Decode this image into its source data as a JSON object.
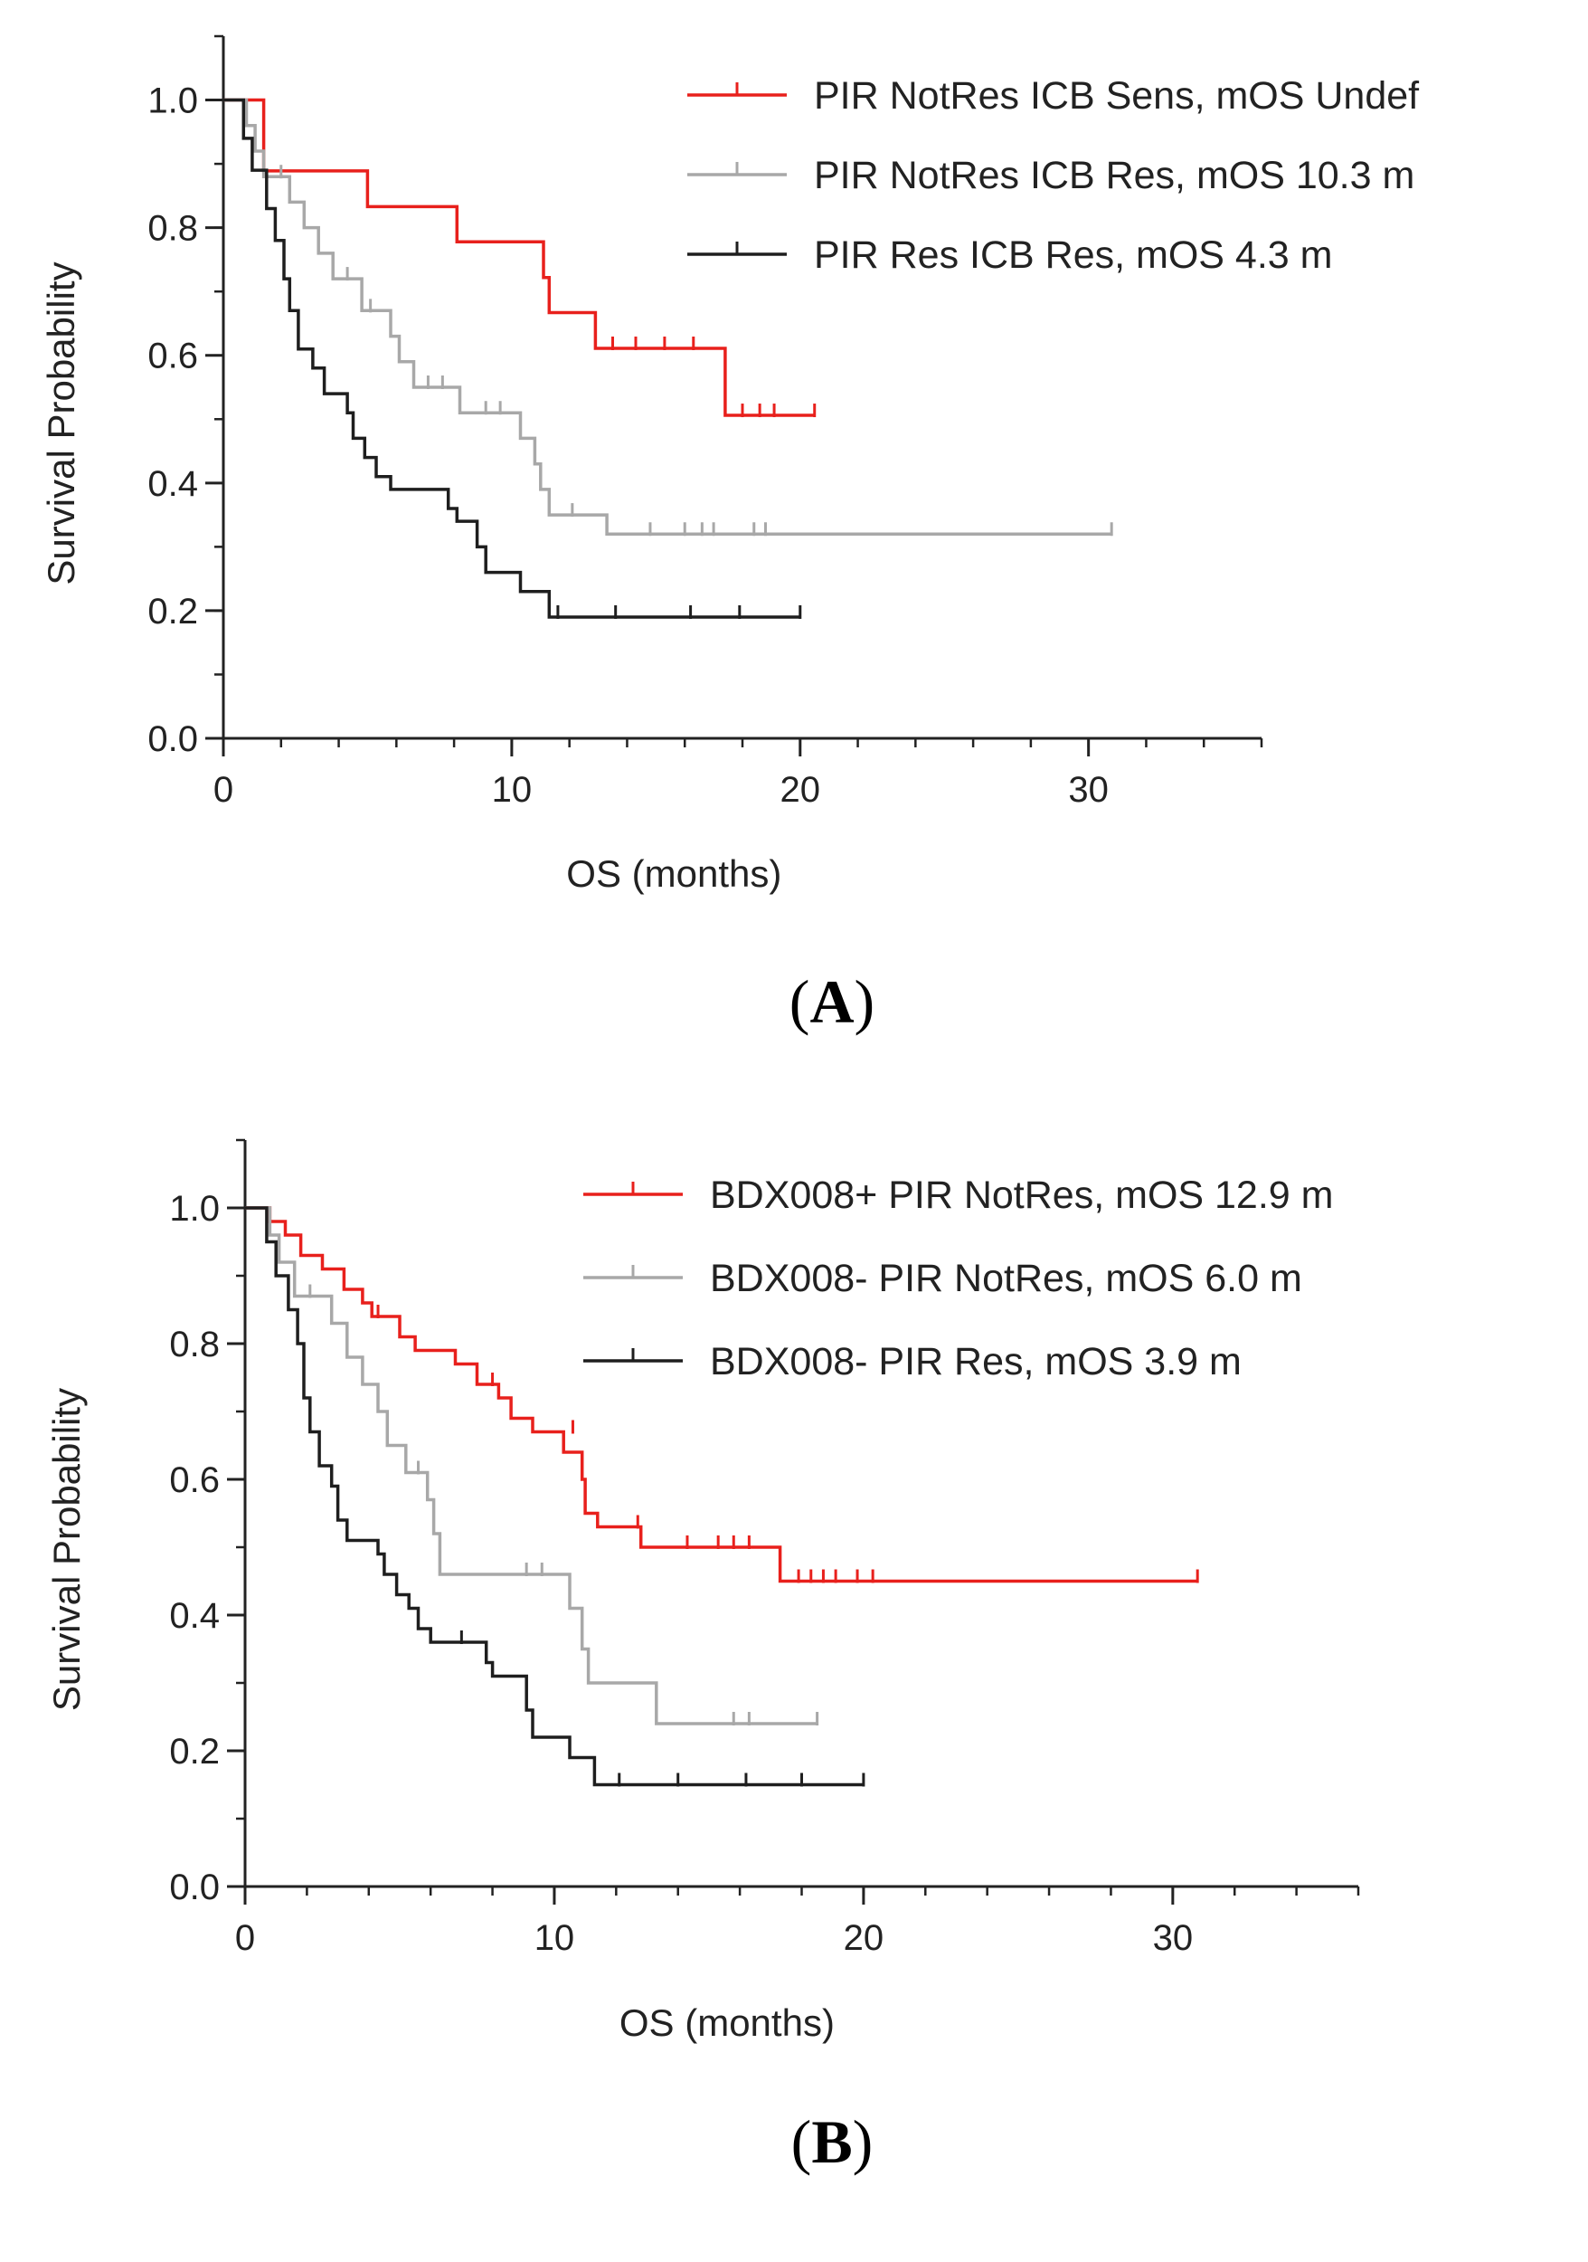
{
  "figure": {
    "label_a": "A",
    "label_b": "B"
  },
  "chart_data": [
    {
      "type": "line",
      "panel": "A",
      "title": "",
      "xlabel": "OS (months)",
      "ylabel": "Survival Probability",
      "xlim": [
        0,
        36
      ],
      "ylim": [
        0,
        1.1
      ],
      "xticks": [
        0,
        10,
        20,
        30
      ],
      "xtick_labels": [
        "0",
        "10",
        "20",
        "30"
      ],
      "yticks": [
        0.0,
        0.2,
        0.4,
        0.6,
        0.8,
        1.0
      ],
      "ytick_labels": [
        "0.0",
        "0.2",
        "0.4",
        "0.6",
        "0.8",
        "1.0"
      ],
      "legend_position": "top-right",
      "series": [
        {
          "name": "PIR NotRes ICB Sens, mOS Undef",
          "color": "#e8201c",
          "steps": [
            [
              0,
              1.0
            ],
            [
              1.4,
              0.889
            ],
            [
              5.0,
              0.833
            ],
            [
              8.1,
              0.778
            ],
            [
              11.1,
              0.722
            ],
            [
              11.3,
              0.667
            ],
            [
              12.9,
              0.611
            ],
            [
              17.4,
              0.506
            ],
            [
              20.5,
              0.506
            ]
          ],
          "censored": [
            [
              13.5,
              0.611
            ],
            [
              14.3,
              0.611
            ],
            [
              15.3,
              0.611
            ],
            [
              16.3,
              0.611
            ],
            [
              18.0,
              0.506
            ],
            [
              18.6,
              0.506
            ],
            [
              19.1,
              0.506
            ],
            [
              20.5,
              0.506
            ]
          ]
        },
        {
          "name": "PIR NotRes ICB Res, mOS 10.3 m",
          "color": "#a8a8a8",
          "steps": [
            [
              0,
              1.0
            ],
            [
              0.8,
              0.96
            ],
            [
              1.1,
              0.92
            ],
            [
              1.4,
              0.88
            ],
            [
              2.3,
              0.84
            ],
            [
              2.8,
              0.8
            ],
            [
              3.3,
              0.76
            ],
            [
              3.8,
              0.72
            ],
            [
              4.8,
              0.67
            ],
            [
              5.8,
              0.63
            ],
            [
              6.1,
              0.59
            ],
            [
              6.6,
              0.55
            ],
            [
              8.2,
              0.51
            ],
            [
              10.3,
              0.47
            ],
            [
              10.8,
              0.43
            ],
            [
              11.0,
              0.39
            ],
            [
              11.3,
              0.35
            ],
            [
              13.3,
              0.32
            ],
            [
              30.8,
              0.32
            ]
          ],
          "censored": [
            [
              2.0,
              0.88
            ],
            [
              4.3,
              0.72
            ],
            [
              5.1,
              0.67
            ],
            [
              7.1,
              0.55
            ],
            [
              7.6,
              0.55
            ],
            [
              9.1,
              0.51
            ],
            [
              9.6,
              0.51
            ],
            [
              12.1,
              0.35
            ],
            [
              14.8,
              0.32
            ],
            [
              16.0,
              0.32
            ],
            [
              16.6,
              0.32
            ],
            [
              17.0,
              0.32
            ],
            [
              18.4,
              0.32
            ],
            [
              18.8,
              0.32
            ],
            [
              30.8,
              0.32
            ]
          ]
        },
        {
          "name": "PIR Res ICB Res, mOS 4.3 m",
          "color": "#1e1e1e",
          "steps": [
            [
              0,
              1.0
            ],
            [
              0.7,
              0.94
            ],
            [
              1.0,
              0.89
            ],
            [
              1.5,
              0.83
            ],
            [
              1.8,
              0.78
            ],
            [
              2.1,
              0.72
            ],
            [
              2.3,
              0.67
            ],
            [
              2.6,
              0.61
            ],
            [
              3.1,
              0.58
            ],
            [
              3.5,
              0.54
            ],
            [
              4.3,
              0.51
            ],
            [
              4.5,
              0.47
            ],
            [
              4.9,
              0.44
            ],
            [
              5.3,
              0.41
            ],
            [
              5.8,
              0.39
            ],
            [
              7.8,
              0.36
            ],
            [
              8.1,
              0.34
            ],
            [
              8.8,
              0.3
            ],
            [
              9.1,
              0.26
            ],
            [
              10.3,
              0.23
            ],
            [
              11.3,
              0.19
            ],
            [
              20.0,
              0.19
            ]
          ],
          "censored": [
            [
              11.6,
              0.19
            ],
            [
              13.6,
              0.19
            ],
            [
              16.2,
              0.19
            ],
            [
              17.9,
              0.19
            ],
            [
              20.0,
              0.19
            ]
          ]
        }
      ]
    },
    {
      "type": "line",
      "panel": "B",
      "title": "",
      "xlabel": "OS (months)",
      "ylabel": "Survival Probability",
      "xlim": [
        0,
        36
      ],
      "ylim": [
        0,
        1.1
      ],
      "xticks": [
        0,
        10,
        20,
        30
      ],
      "xtick_labels": [
        "0",
        "10",
        "20",
        "30"
      ],
      "yticks": [
        0.0,
        0.2,
        0.4,
        0.6,
        0.8,
        1.0
      ],
      "ytick_labels": [
        "0.0",
        "0.2",
        "0.4",
        "0.6",
        "0.8",
        "1.0"
      ],
      "legend_position": "top-right",
      "series": [
        {
          "name": "BDX008+ PIR NotRes, mOS 12.9 m",
          "color": "#e8201c",
          "steps": [
            [
              0,
              1.0
            ],
            [
              0.8,
              0.98
            ],
            [
              1.3,
              0.96
            ],
            [
              1.8,
              0.93
            ],
            [
              2.5,
              0.91
            ],
            [
              3.2,
              0.88
            ],
            [
              3.8,
              0.86
            ],
            [
              4.1,
              0.84
            ],
            [
              5.0,
              0.81
            ],
            [
              5.5,
              0.79
            ],
            [
              6.8,
              0.77
            ],
            [
              7.5,
              0.74
            ],
            [
              8.2,
              0.72
            ],
            [
              8.6,
              0.69
            ],
            [
              9.3,
              0.67
            ],
            [
              10.3,
              0.64
            ],
            [
              10.9,
              0.6
            ],
            [
              11.0,
              0.55
            ],
            [
              11.4,
              0.53
            ],
            [
              12.8,
              0.5
            ],
            [
              17.3,
              0.45
            ],
            [
              30.8,
              0.45
            ]
          ],
          "censored": [
            [
              4.3,
              0.84
            ],
            [
              8.0,
              0.74
            ],
            [
              10.6,
              0.67
            ],
            [
              12.7,
              0.53
            ],
            [
              14.3,
              0.5
            ],
            [
              15.3,
              0.5
            ],
            [
              15.8,
              0.5
            ],
            [
              16.3,
              0.5
            ],
            [
              17.9,
              0.45
            ],
            [
              18.3,
              0.45
            ],
            [
              18.7,
              0.45
            ],
            [
              19.1,
              0.45
            ],
            [
              19.8,
              0.45
            ],
            [
              20.3,
              0.45
            ],
            [
              30.8,
              0.45
            ]
          ]
        },
        {
          "name": "BDX008- PIR NotRes, mOS 6.0 m",
          "color": "#a8a8a8",
          "steps": [
            [
              0,
              1.0
            ],
            [
              0.8,
              0.96
            ],
            [
              1.1,
              0.92
            ],
            [
              1.6,
              0.87
            ],
            [
              2.8,
              0.83
            ],
            [
              3.3,
              0.78
            ],
            [
              3.8,
              0.74
            ],
            [
              4.3,
              0.7
            ],
            [
              4.6,
              0.65
            ],
            [
              5.2,
              0.61
            ],
            [
              5.9,
              0.57
            ],
            [
              6.1,
              0.52
            ],
            [
              6.3,
              0.46
            ],
            [
              10.5,
              0.41
            ],
            [
              10.9,
              0.35
            ],
            [
              11.1,
              0.3
            ],
            [
              13.3,
              0.24
            ],
            [
              18.5,
              0.24
            ]
          ],
          "censored": [
            [
              2.1,
              0.87
            ],
            [
              5.6,
              0.61
            ],
            [
              9.1,
              0.46
            ],
            [
              9.6,
              0.46
            ],
            [
              15.8,
              0.24
            ],
            [
              16.3,
              0.24
            ],
            [
              18.5,
              0.24
            ]
          ]
        },
        {
          "name": "BDX008- PIR Res, mOS 3.9 m",
          "color": "#1e1e1e",
          "steps": [
            [
              0,
              1.0
            ],
            [
              0.7,
              0.95
            ],
            [
              1.0,
              0.9
            ],
            [
              1.4,
              0.85
            ],
            [
              1.7,
              0.8
            ],
            [
              1.9,
              0.72
            ],
            [
              2.1,
              0.67
            ],
            [
              2.4,
              0.62
            ],
            [
              2.8,
              0.59
            ],
            [
              3.0,
              0.54
            ],
            [
              3.3,
              0.51
            ],
            [
              4.3,
              0.49
            ],
            [
              4.5,
              0.46
            ],
            [
              4.9,
              0.43
            ],
            [
              5.3,
              0.41
            ],
            [
              5.6,
              0.38
            ],
            [
              6.0,
              0.36
            ],
            [
              7.8,
              0.33
            ],
            [
              8.0,
              0.31
            ],
            [
              9.1,
              0.26
            ],
            [
              9.3,
              0.22
            ],
            [
              10.5,
              0.19
            ],
            [
              11.3,
              0.15
            ],
            [
              20.0,
              0.15
            ]
          ],
          "censored": [
            [
              7.0,
              0.36
            ],
            [
              12.1,
              0.15
            ],
            [
              14.0,
              0.15
            ],
            [
              16.2,
              0.15
            ],
            [
              18.0,
              0.15
            ],
            [
              20.0,
              0.15
            ]
          ]
        }
      ]
    }
  ]
}
